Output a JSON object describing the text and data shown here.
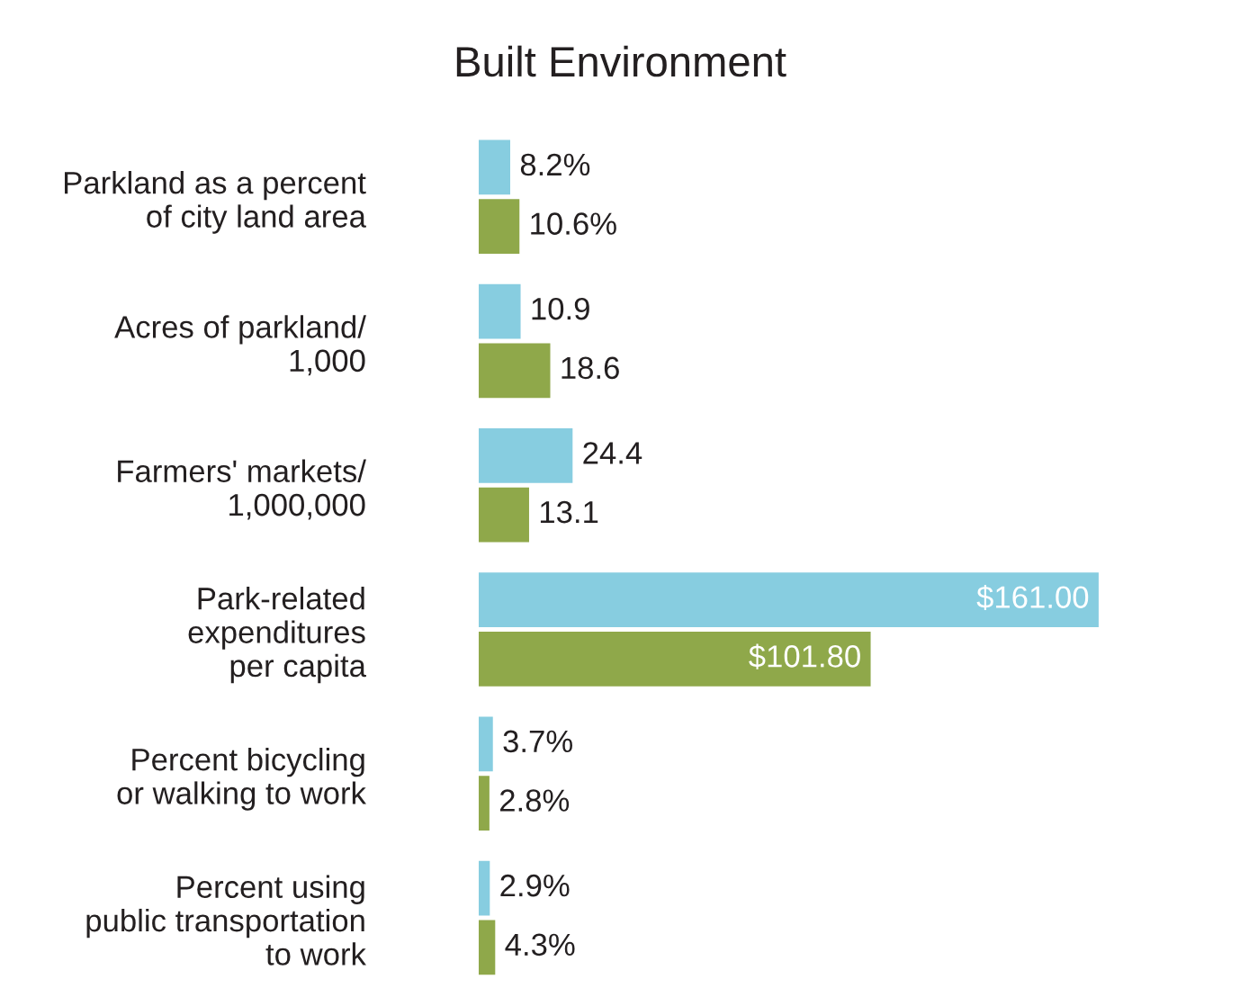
{
  "chart_data": {
    "type": "bar",
    "orientation": "horizontal",
    "title": "Built Environment",
    "categories": [
      "Parkland as a percent\nof city land area",
      "Acres of parkland/\n1,000",
      "Farmers' markets/\n1,000,000",
      "Park-related\nexpenditures\nper capita",
      "Percent bicycling\nor walking to work",
      "Percent using\npublic transportation\nto work"
    ],
    "series": [
      {
        "color": "#87cde0",
        "values": [
          8.2,
          10.9,
          24.4,
          161.0,
          3.7,
          2.9
        ],
        "value_labels": [
          "8.2%",
          "10.9",
          "24.4",
          "$161.00",
          "3.7%",
          "2.9%"
        ]
      },
      {
        "color": "#8fa84a",
        "values": [
          10.6,
          18.6,
          13.1,
          101.8,
          2.8,
          4.3
        ],
        "value_labels": [
          "10.6%",
          "18.6",
          "13.1",
          "$101.80",
          "2.8%",
          "4.3%"
        ]
      }
    ],
    "grid": false,
    "legend": false,
    "tick_labels": "y"
  }
}
